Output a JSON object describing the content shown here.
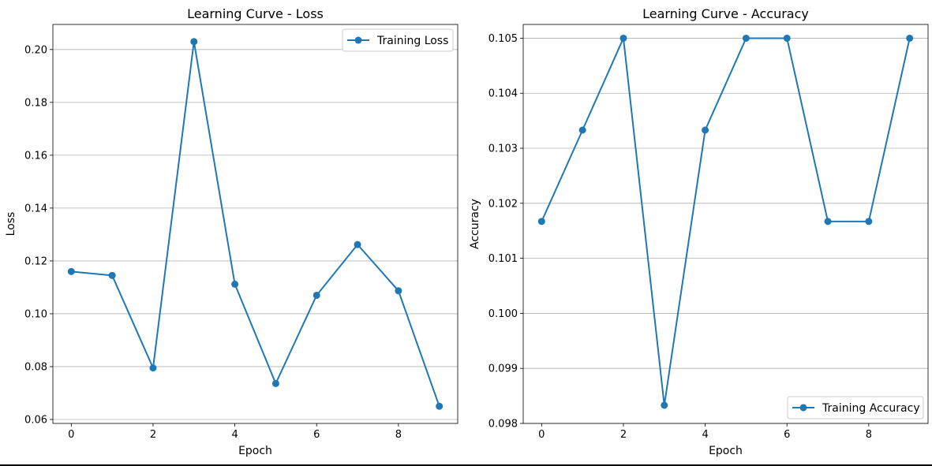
{
  "chart_data": [
    {
      "type": "line",
      "title": "Learning Curve - Loss",
      "xlabel": "Epoch",
      "ylabel": "Loss",
      "xlim": [
        -0.45,
        9.45
      ],
      "ylim": [
        0.0585,
        0.2095
      ],
      "xticks": [
        0,
        2,
        4,
        6,
        8
      ],
      "xtick_labels": [
        "0",
        "2",
        "4",
        "6",
        "8"
      ],
      "yticks": [
        0.06,
        0.08,
        0.1,
        0.12,
        0.14,
        0.16,
        0.18,
        0.2
      ],
      "ytick_labels": [
        "0.06",
        "0.08",
        "0.10",
        "0.12",
        "0.14",
        "0.16",
        "0.18",
        "0.20"
      ],
      "grid": "y",
      "legend_position": "top-right",
      "series": [
        {
          "name": "Training Loss",
          "color": "#1f77b4",
          "x": [
            0,
            1,
            2,
            3,
            4,
            5,
            6,
            7,
            8,
            9
          ],
          "values": [
            0.116,
            0.1145,
            0.0795,
            0.203,
            0.1112,
            0.0736,
            0.107,
            0.1262,
            0.1087,
            0.065
          ]
        }
      ]
    },
    {
      "type": "line",
      "title": "Learning Curve - Accuracy",
      "xlabel": "Epoch",
      "ylabel": "Accuracy",
      "xlim": [
        -0.45,
        9.45
      ],
      "ylim": [
        0.098,
        0.10525
      ],
      "xticks": [
        0,
        2,
        4,
        6,
        8
      ],
      "xtick_labels": [
        "0",
        "2",
        "4",
        "6",
        "8"
      ],
      "yticks": [
        0.098,
        0.099,
        0.1,
        0.101,
        0.102,
        0.103,
        0.104,
        0.105
      ],
      "ytick_labels": [
        "0.098",
        "0.099",
        "0.100",
        "0.101",
        "0.102",
        "0.103",
        "0.104",
        "0.105"
      ],
      "grid": "y",
      "legend_position": "bottom-right",
      "series": [
        {
          "name": "Training Accuracy",
          "color": "#1f77b4",
          "x": [
            0,
            1,
            2,
            3,
            4,
            5,
            6,
            7,
            8,
            9
          ],
          "values": [
            0.10167,
            0.10333,
            0.105,
            0.09833,
            0.10333,
            0.105,
            0.105,
            0.10167,
            0.10167,
            0.105
          ]
        }
      ]
    }
  ]
}
